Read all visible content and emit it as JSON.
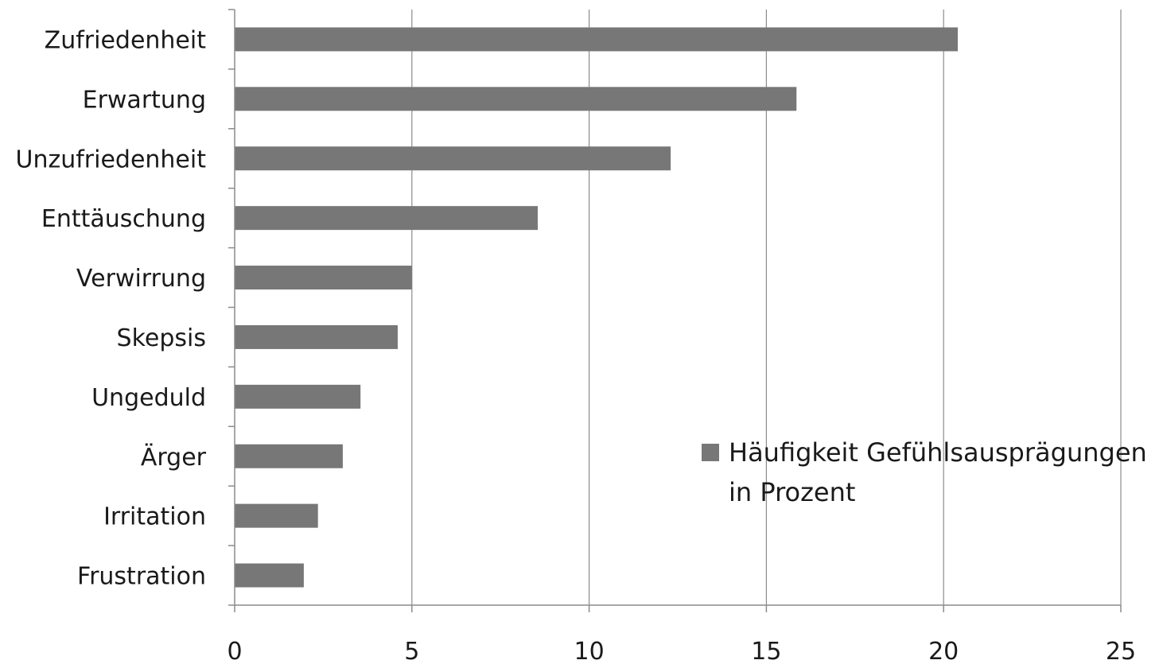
{
  "chart_data": {
    "type": "bar",
    "orientation": "horizontal",
    "categories": [
      "Zufriedenheit",
      "Erwartung",
      "Unzufriedenheit",
      "Enttäuschung",
      "Verwirrung",
      "Skepsis",
      "Ungeduld",
      "Ärger",
      "Irritation",
      "Frustration"
    ],
    "series": [
      {
        "name": "Häufigkeit Gefühlsausprägungen in Prozent",
        "values": [
          20.4,
          15.85,
          12.3,
          8.55,
          5.0,
          4.6,
          3.55,
          3.05,
          2.35,
          1.95
        ],
        "color": "#777777"
      }
    ],
    "xlim": [
      0,
      25
    ],
    "xticks": [
      0,
      5,
      10,
      15,
      20,
      25
    ],
    "grid": "vertical",
    "gridColor": "#8c8c8c",
    "axisColor": "#8c8c8c",
    "legend": {
      "position": "right",
      "lines": [
        "Häufigkeit Gefühlsausprägungen",
        "in Prozent"
      ]
    },
    "title": "",
    "xlabel": "",
    "ylabel": ""
  }
}
